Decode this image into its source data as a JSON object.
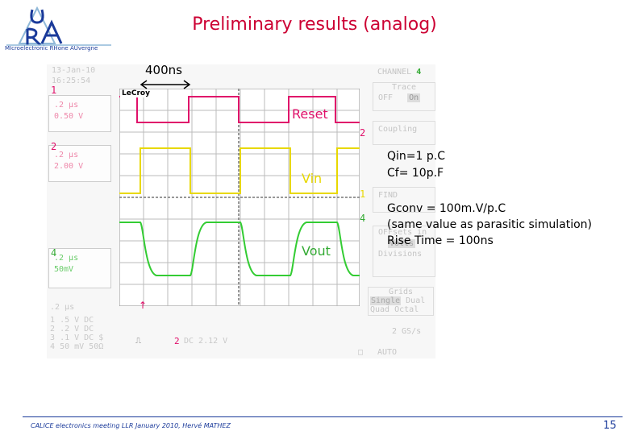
{
  "title": "Preliminary  results (analog)",
  "logo": {
    "letters": "U R A",
    "caption": "MIcroelectronic RHone AUvergne"
  },
  "annotations": {
    "width_label": "400ns",
    "qin": "Qin=1 p.C",
    "cf": "Cf= 10p.F",
    "gconv": "Gconv = 100m.V/p.C",
    "sim_note": "(same value as parasitic simulation)",
    "rise_time": "Rise Time = 100ns"
  },
  "scope": {
    "date": "13-Jan-10",
    "time": "16:25:54",
    "brand": "LeCroy",
    "channels": [
      {
        "num": "1",
        "line1": ".2 µs",
        "line2": "0.50 V",
        "color": "#ee88aa"
      },
      {
        "num": "2",
        "line1": ".2 µs",
        "line2": "2.00 V",
        "color": "#ee88aa"
      },
      {
        "num": "4",
        "line1": ".2 µs",
        "line2": "50mV",
        "color": "#6acc6a"
      }
    ],
    "timebase": ".2 µs",
    "status_rows": [
      {
        "num": "1",
        "text": ".5   V   DC"
      },
      {
        "num": "2",
        "text": ".2   V   DC"
      },
      {
        "num": "3",
        "text": ".1   V   DC $"
      },
      {
        "num": "4",
        "text": "50 mV  50Ω"
      }
    ],
    "trigger_text": "DC 2.12 V",
    "trigger_channel": "2",
    "trace_labels": {
      "reset": "Reset",
      "vin": "Vin",
      "vout": "Vout"
    },
    "menu": {
      "channel_label": "CHANNEL",
      "channel_value": "4",
      "trace": "Trace",
      "trace_off": "OFF",
      "trace_on": "On",
      "coupling": "Coupling",
      "find": "FIND",
      "offset_in": "OFFsets in",
      "volts": "Volts",
      "divisions": "Divisions",
      "grids": "Grids",
      "single": "Single",
      "dual": "Dual",
      "quad": "Quad",
      "octal": "Octal",
      "sample_rate": "2 GS/s",
      "auto": "AUTO"
    },
    "right_markers": {
      "reset": "2",
      "vin": "1",
      "vout": "4"
    }
  },
  "colors": {
    "title": "#cc0033",
    "reset": "#e0106a",
    "vin": "#e8d800",
    "vout": "#33cc33",
    "footer": "#1a3a9a"
  },
  "footer": {
    "text": "CALICE electronics meeting LLR January 2010, Hervé MATHEZ",
    "page": "15"
  }
}
